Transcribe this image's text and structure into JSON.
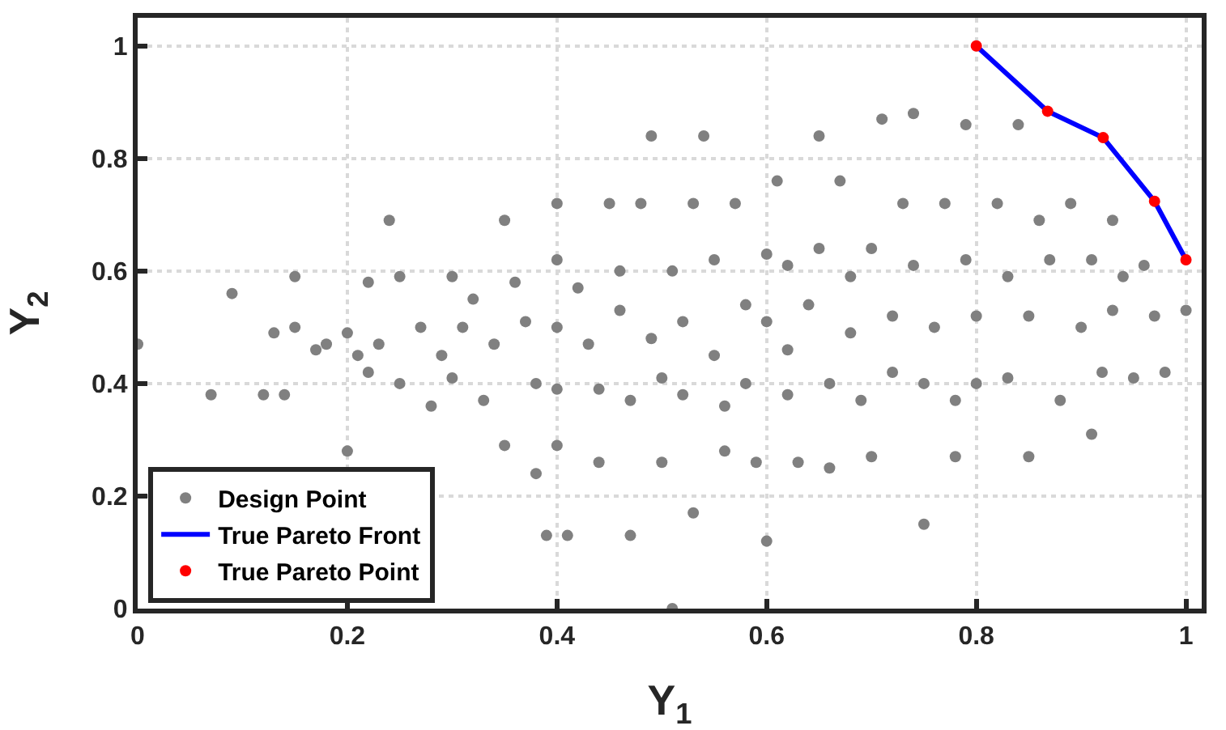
{
  "chart_data": {
    "type": "scatter",
    "xlabel": "Y$_{1}$",
    "ylabel": "Y$_{2}$",
    "xlim": [
      0,
      1.015
    ],
    "ylim": [
      0,
      1.05
    ],
    "xticks": [
      0,
      0.2,
      0.4,
      0.6,
      0.8,
      1
    ],
    "yticks": [
      0,
      0.2,
      0.4,
      0.6,
      0.8,
      1
    ],
    "grid": true,
    "legend": "bottom left",
    "marker": "circle",
    "series": [
      {
        "name": "Design Point",
        "type": "scatter",
        "color": "#808080",
        "x": [
          0,
          0.07,
          0.09,
          0.12,
          0.13,
          0.14,
          0.15,
          0.15,
          0.17,
          0.18,
          0.2,
          0.2,
          0.21,
          0.22,
          0.22,
          0.23,
          0.24,
          0.25,
          0.25,
          0.27,
          0.28,
          0.29,
          0.3,
          0.3,
          0.31,
          0.32,
          0.33,
          0.34,
          0.35,
          0.35,
          0.36,
          0.37,
          0.38,
          0.38,
          0.39,
          0.4,
          0.4,
          0.4,
          0.4,
          0.4,
          0.41,
          0.42,
          0.43,
          0.44,
          0.44,
          0.45,
          0.46,
          0.46,
          0.47,
          0.47,
          0.48,
          0.49,
          0.49,
          0.5,
          0.5,
          0.51,
          0.52,
          0.52,
          0.53,
          0.53,
          0.54,
          0.55,
          0.55,
          0.56,
          0.56,
          0.57,
          0.58,
          0.58,
          0.59,
          0.6,
          0.6,
          0.6,
          0.61,
          0.62,
          0.62,
          0.62,
          0.63,
          0.64,
          0.65,
          0.65,
          0.66,
          0.66,
          0.67,
          0.68,
          0.68,
          0.69,
          0.7,
          0.7,
          0.71,
          0.72,
          0.72,
          0.73,
          0.74,
          0.74,
          0.75,
          0.75,
          0.76,
          0.77,
          0.78,
          0.78,
          0.79,
          0.79,
          0.8,
          0.8,
          0.82,
          0.83,
          0.83,
          0.84,
          0.85,
          0.85,
          0.86,
          0.87,
          0.88,
          0.89,
          0.9,
          0.91,
          0.92,
          0.93,
          0.93,
          0.94,
          0.95,
          0.96,
          0.97,
          0.98,
          1.0,
          0.91,
          0.51
        ],
        "values": [
          0.47,
          0.38,
          0.56,
          0.38,
          0.49,
          0.38,
          0.5,
          0.59,
          0.46,
          0.47,
          0.49,
          0.28,
          0.45,
          0.58,
          0.42,
          0.47,
          0.69,
          0.59,
          0.4,
          0.5,
          0.36,
          0.45,
          0.59,
          0.41,
          0.5,
          0.55,
          0.37,
          0.47,
          0.69,
          0.29,
          0.58,
          0.51,
          0.4,
          0.24,
          0.13,
          0.72,
          0.62,
          0.5,
          0.39,
          0.29,
          0.13,
          0.57,
          0.47,
          0.39,
          0.26,
          0.72,
          0.6,
          0.53,
          0.37,
          0.13,
          0.72,
          0.84,
          0.48,
          0.41,
          0.26,
          0.6,
          0.51,
          0.38,
          0.72,
          0.17,
          0.84,
          0.62,
          0.45,
          0.36,
          0.28,
          0.72,
          0.54,
          0.4,
          0.26,
          0.63,
          0.51,
          0.12,
          0.76,
          0.61,
          0.46,
          0.38,
          0.26,
          0.54,
          0.84,
          0.64,
          0.4,
          0.25,
          0.76,
          0.59,
          0.49,
          0.37,
          0.64,
          0.27,
          0.87,
          0.52,
          0.42,
          0.72,
          0.88,
          0.61,
          0.4,
          0.15,
          0.5,
          0.72,
          0.37,
          0.27,
          0.62,
          0.86,
          0.52,
          0.4,
          0.72,
          0.59,
          0.41,
          0.86,
          0.52,
          0.27,
          0.69,
          0.62,
          0.37,
          0.72,
          0.5,
          0.62,
          0.42,
          0.69,
          0.53,
          0.59,
          0.41,
          0.61,
          0.52,
          0.42,
          0.53,
          0.31,
          0.0
        ]
      },
      {
        "name": "True Pareto Front",
        "type": "line",
        "color": "#0000ff",
        "line_style": "solid",
        "marker": "none",
        "x": [
          0.8,
          0.868,
          0.921,
          0.97,
          1.0
        ],
        "values": [
          1.0,
          0.884,
          0.837,
          0.724,
          0.62
        ]
      },
      {
        "name": "True Pareto Point",
        "type": "scatter",
        "color": "#ff0000",
        "x": [
          0.8,
          0.868,
          0.921,
          0.97,
          1.0
        ],
        "values": [
          1.0,
          0.884,
          0.837,
          0.724,
          0.62
        ]
      }
    ]
  }
}
